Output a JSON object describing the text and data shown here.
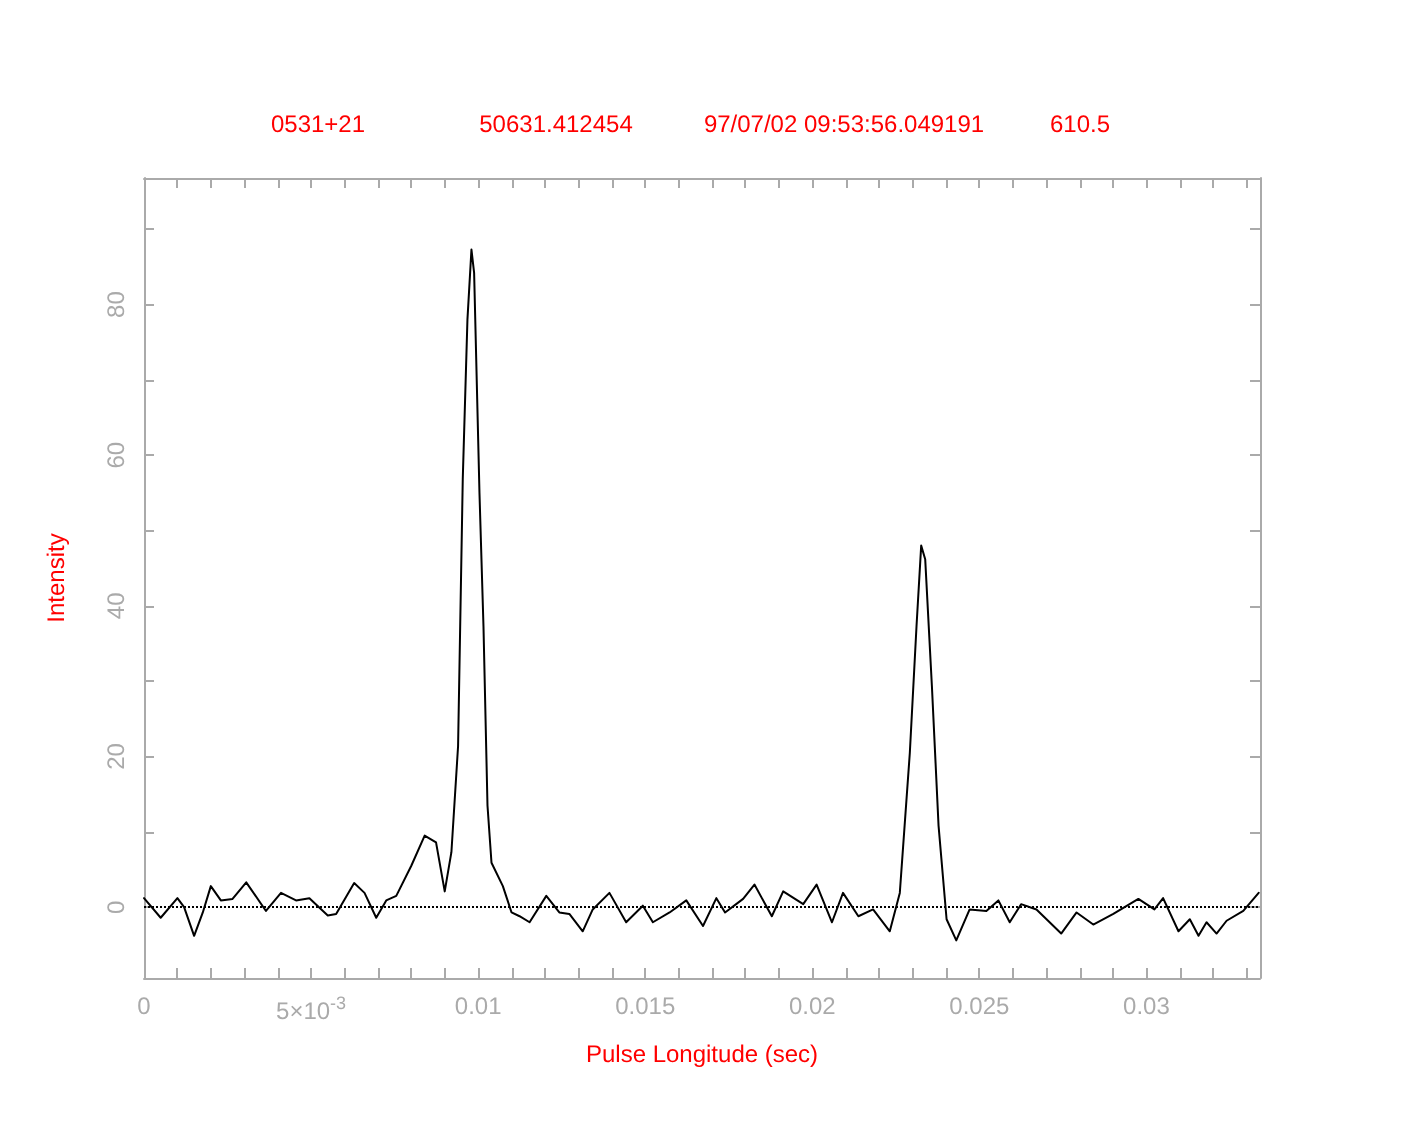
{
  "chart_data": {
    "type": "line",
    "annotations": [
      "0531+21",
      "50631.412454",
      "97/07/02 09:53:56.049191",
      "610.5"
    ],
    "xlabel": "Pulse Longitude (sec)",
    "ylabel": "Intensity",
    "xlim": [
      0,
      0.0334
    ],
    "ylim": [
      -9.4,
      96.8
    ],
    "xticks": [
      0,
      {
        "value": 0.001,
        "label": null
      },
      {
        "value": 0.002,
        "label": null
      },
      {
        "value": 0.003,
        "label": null
      },
      {
        "value": 0.004,
        "label": null
      },
      {
        "value": 0.005,
        "label": "5×10$^{-3}$"
      },
      {
        "value": 0.006,
        "label": null
      },
      {
        "value": 0.007,
        "label": null
      },
      {
        "value": 0.008,
        "label": null
      },
      {
        "value": 0.009,
        "label": null
      },
      0.01,
      {
        "value": 0.011,
        "label": null
      },
      {
        "value": 0.012,
        "label": null
      },
      {
        "value": 0.013,
        "label": null
      },
      {
        "value": 0.014,
        "label": null
      },
      0.015,
      {
        "value": 0.016,
        "label": null
      },
      {
        "value": 0.017,
        "label": null
      },
      {
        "value": 0.018,
        "label": null
      },
      {
        "value": 0.019,
        "label": null
      },
      0.02,
      {
        "value": 0.021,
        "label": null
      },
      {
        "value": 0.022,
        "label": null
      },
      {
        "value": 0.023,
        "label": null
      },
      {
        "value": 0.024,
        "label": null
      },
      0.025,
      {
        "value": 0.026,
        "label": null
      },
      {
        "value": 0.027,
        "label": null
      },
      {
        "value": 0.028,
        "label": null
      },
      {
        "value": 0.029,
        "label": null
      },
      0.03,
      {
        "value": 0.031,
        "label": null
      },
      {
        "value": 0.032,
        "label": null
      },
      {
        "value": 0.033,
        "label": null
      }
    ],
    "yticks": [
      0,
      {
        "value": 10,
        "label": null
      },
      20,
      {
        "value": 30,
        "label": null
      },
      40,
      {
        "value": 50,
        "label": null
      },
      60,
      {
        "value": 70,
        "label": null
      },
      80,
      {
        "value": 90,
        "label": null
      }
    ],
    "grid": false,
    "marker": "none",
    "line_style": "solid",
    "ref_lines": [
      {
        "axis": "y",
        "value": 0,
        "color": "#000000",
        "line_style": "dotted"
      }
    ],
    "series": [
      {
        "color": "#000000",
        "x": [
          0,
          0.0005,
          0.001,
          0.0012,
          0.0015,
          0.00176,
          0.002,
          0.0023,
          0.00265,
          0.00306,
          0.00365,
          0.0041,
          0.00455,
          0.00495,
          0.0055,
          0.00575,
          0.00629,
          0.0066,
          0.00695,
          0.00725,
          0.00755,
          0.008,
          0.0084,
          0.00874,
          0.009,
          0.0092,
          0.0094,
          0.00954,
          0.00968,
          0.0098,
          0.00988,
          0.01004,
          0.01016,
          0.01028,
          0.0104,
          0.01074,
          0.011,
          0.01124,
          0.01154,
          0.01204,
          0.01243,
          0.01273,
          0.01313,
          0.01343,
          0.01393,
          0.01443,
          0.01493,
          0.01523,
          0.01573,
          0.01623,
          0.01673,
          0.01713,
          0.01739,
          0.01793,
          0.01827,
          0.01879,
          0.01913,
          0.01973,
          0.02013,
          0.02059,
          0.02092,
          0.02138,
          0.02182,
          0.02232,
          0.02262,
          0.02292,
          0.02312,
          0.02326,
          0.02338,
          0.02358,
          0.02378,
          0.02402,
          0.02431,
          0.02471,
          0.02521,
          0.02557,
          0.02591,
          0.02625,
          0.02671,
          0.02745,
          0.02791,
          0.02841,
          0.02901,
          0.02976,
          0.03024,
          0.0305,
          0.03096,
          0.0313,
          0.03156,
          0.0318,
          0.0321,
          0.0324,
          0.0329,
          0.03336
        ],
        "values": [
          1.2,
          -1.4,
          1.2,
          0,
          -3.8,
          -0.7,
          2.8,
          0.9,
          1.1,
          3.3,
          -0.5,
          1.9,
          0.9,
          1.2,
          -1.1,
          -0.9,
          3.2,
          1.9,
          -1.4,
          0.9,
          1.5,
          5.5,
          9.5,
          8.6,
          2.1,
          7.3,
          21.4,
          56.8,
          78,
          87.3,
          84.2,
          55,
          37.3,
          13.5,
          5.9,
          2.8,
          -0.7,
          -1.2,
          -2,
          1.5,
          -0.7,
          -0.9,
          -3.2,
          -0.3,
          1.9,
          -2,
          0.2,
          -2,
          -0.7,
          0.9,
          -2.5,
          1.2,
          -0.7,
          1.1,
          3,
          -1.2,
          2.1,
          0.4,
          3,
          -2,
          1.9,
          -1.2,
          -0.3,
          -3.2,
          1.9,
          20.5,
          37.3,
          48,
          46.2,
          29.4,
          10.8,
          -1.6,
          -4.4,
          -0.3,
          -0.5,
          0.9,
          -2,
          0.4,
          -0.3,
          -3.5,
          -0.7,
          -2.3,
          -0.9,
          1.1,
          -0.3,
          1.2,
          -3.2,
          -1.6,
          -3.8,
          -2,
          -3.5,
          -1.8,
          -0.5,
          1.9
        ]
      }
    ]
  }
}
